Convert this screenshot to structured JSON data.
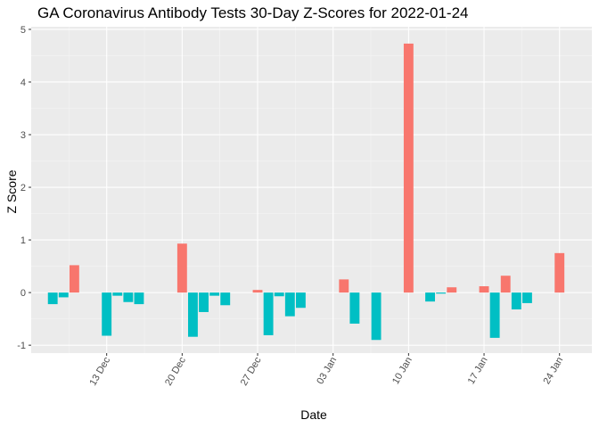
{
  "chart_data": {
    "type": "bar",
    "title": "GA Coronavirus Antibody Tests 30-Day Z-Scores for 2022-01-24",
    "xlabel": "Date",
    "ylabel": "Z Score",
    "x_tick_labels": [
      {
        "date": "2021-12-13",
        "label": "13 Dec"
      },
      {
        "date": "2021-12-20",
        "label": "20 Dec"
      },
      {
        "date": "2021-12-27",
        "label": "27 Dec"
      },
      {
        "date": "2022-01-03",
        "label": "03 Jan"
      },
      {
        "date": "2022-01-10",
        "label": "10 Jan"
      },
      {
        "date": "2022-01-17",
        "label": "17 Jan"
      },
      {
        "date": "2022-01-24",
        "label": "24 Jan"
      }
    ],
    "y_ticks": [
      -1,
      0,
      1,
      2,
      3,
      4,
      5
    ],
    "ylim": [
      -1.15,
      5.05
    ],
    "xlim": [
      "2021-12-06",
      "2022-01-27"
    ],
    "grid": true,
    "positive_color": "#F8766D",
    "negative_color": "#00BFC4",
    "x": [
      "2021-12-08",
      "2021-12-09",
      "2021-12-10",
      "2021-12-13",
      "2021-12-14",
      "2021-12-15",
      "2021-12-16",
      "2021-12-20",
      "2021-12-21",
      "2021-12-22",
      "2021-12-23",
      "2021-12-24",
      "2021-12-27",
      "2021-12-28",
      "2021-12-29",
      "2021-12-30",
      "2021-12-31",
      "2022-01-04",
      "2022-01-05",
      "2022-01-07",
      "2022-01-10",
      "2022-01-12",
      "2022-01-13",
      "2022-01-14",
      "2022-01-17",
      "2022-01-18",
      "2022-01-19",
      "2022-01-20",
      "2022-01-21",
      "2022-01-24"
    ],
    "values": [
      -0.22,
      -0.09,
      0.52,
      -0.82,
      -0.06,
      -0.18,
      -0.22,
      0.93,
      -0.84,
      -0.37,
      -0.06,
      -0.24,
      0.05,
      -0.81,
      -0.07,
      -0.45,
      -0.29,
      0.25,
      -0.59,
      -0.9,
      4.73,
      -0.17,
      -0.02,
      0.1,
      0.12,
      -0.86,
      0.32,
      -0.32,
      -0.2,
      0.75
    ]
  }
}
